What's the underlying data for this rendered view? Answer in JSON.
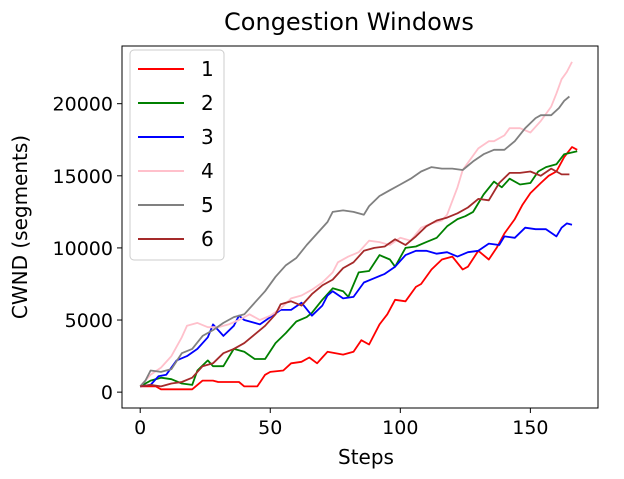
{
  "chart_data": {
    "type": "line",
    "title": "Congestion Windows",
    "xlabel": "Steps",
    "ylabel": "CWND (segments)",
    "xlim": [
      -7,
      176
    ],
    "ylim": [
      -1100,
      24000
    ],
    "xticks": [
      0,
      50,
      100,
      150
    ],
    "yticks": [
      0,
      5000,
      10000,
      15000,
      20000
    ],
    "grid": false,
    "legend_position": "upper-left",
    "series": [
      {
        "name": "1",
        "color": "#ff0000",
        "points": [
          [
            0,
            400
          ],
          [
            6,
            400
          ],
          [
            8,
            200
          ],
          [
            20,
            200
          ],
          [
            22,
            500
          ],
          [
            24,
            800
          ],
          [
            28,
            800
          ],
          [
            30,
            700
          ],
          [
            38,
            700
          ],
          [
            40,
            400
          ],
          [
            45,
            400
          ],
          [
            48,
            1200
          ],
          [
            50,
            1400
          ],
          [
            55,
            1500
          ],
          [
            58,
            2000
          ],
          [
            62,
            2100
          ],
          [
            65,
            2400
          ],
          [
            68,
            2000
          ],
          [
            70,
            2400
          ],
          [
            72,
            2800
          ],
          [
            78,
            2600
          ],
          [
            82,
            2800
          ],
          [
            85,
            3600
          ],
          [
            88,
            3300
          ],
          [
            92,
            4700
          ],
          [
            95,
            5400
          ],
          [
            98,
            6400
          ],
          [
            102,
            6300
          ],
          [
            106,
            7300
          ],
          [
            108,
            7500
          ],
          [
            112,
            8500
          ],
          [
            116,
            9200
          ],
          [
            120,
            9400
          ],
          [
            124,
            8500
          ],
          [
            126,
            8700
          ],
          [
            130,
            9800
          ],
          [
            134,
            9200
          ],
          [
            137,
            10000
          ],
          [
            140,
            11000
          ],
          [
            144,
            12000
          ],
          [
            147,
            13000
          ],
          [
            150,
            13800
          ],
          [
            154,
            14500
          ],
          [
            157,
            15000
          ],
          [
            160,
            15300
          ],
          [
            163,
            16300
          ],
          [
            166,
            17000
          ],
          [
            168,
            16800
          ]
        ]
      },
      {
        "name": "2",
        "color": "#008000",
        "points": [
          [
            0,
            400
          ],
          [
            4,
            800
          ],
          [
            8,
            1000
          ],
          [
            12,
            900
          ],
          [
            16,
            600
          ],
          [
            20,
            500
          ],
          [
            22,
            1500
          ],
          [
            26,
            2200
          ],
          [
            28,
            1800
          ],
          [
            32,
            1800
          ],
          [
            36,
            3000
          ],
          [
            40,
            2800
          ],
          [
            44,
            2300
          ],
          [
            48,
            2300
          ],
          [
            52,
            3400
          ],
          [
            56,
            4100
          ],
          [
            60,
            4900
          ],
          [
            64,
            5200
          ],
          [
            66,
            5500
          ],
          [
            70,
            6400
          ],
          [
            74,
            7200
          ],
          [
            78,
            7000
          ],
          [
            80,
            6600
          ],
          [
            84,
            8300
          ],
          [
            88,
            8400
          ],
          [
            92,
            9500
          ],
          [
            96,
            9200
          ],
          [
            98,
            8700
          ],
          [
            102,
            10000
          ],
          [
            106,
            10100
          ],
          [
            110,
            10400
          ],
          [
            114,
            10700
          ],
          [
            118,
            11500
          ],
          [
            122,
            12000
          ],
          [
            125,
            12200
          ],
          [
            128,
            12500
          ],
          [
            132,
            13700
          ],
          [
            136,
            14600
          ],
          [
            139,
            14200
          ],
          [
            142,
            14800
          ],
          [
            146,
            14400
          ],
          [
            150,
            14500
          ],
          [
            153,
            15300
          ],
          [
            156,
            15600
          ],
          [
            160,
            15800
          ],
          [
            163,
            16500
          ],
          [
            168,
            16700
          ]
        ]
      },
      {
        "name": "3",
        "color": "#0000ff",
        "points": [
          [
            0,
            400
          ],
          [
            4,
            500
          ],
          [
            7,
            1100
          ],
          [
            10,
            1200
          ],
          [
            14,
            2200
          ],
          [
            18,
            2500
          ],
          [
            22,
            3000
          ],
          [
            26,
            3800
          ],
          [
            28,
            4700
          ],
          [
            32,
            3900
          ],
          [
            36,
            4600
          ],
          [
            38,
            5300
          ],
          [
            40,
            5000
          ],
          [
            44,
            4800
          ],
          [
            46,
            4700
          ],
          [
            50,
            5200
          ],
          [
            54,
            5700
          ],
          [
            58,
            5700
          ],
          [
            62,
            6200
          ],
          [
            66,
            5300
          ],
          [
            70,
            6000
          ],
          [
            72,
            6700
          ],
          [
            74,
            7000
          ],
          [
            78,
            6500
          ],
          [
            82,
            6600
          ],
          [
            86,
            7600
          ],
          [
            90,
            7900
          ],
          [
            94,
            8200
          ],
          [
            98,
            8700
          ],
          [
            102,
            9500
          ],
          [
            106,
            9800
          ],
          [
            110,
            9800
          ],
          [
            114,
            9600
          ],
          [
            118,
            9700
          ],
          [
            122,
            9400
          ],
          [
            126,
            9700
          ],
          [
            130,
            9800
          ],
          [
            134,
            10300
          ],
          [
            138,
            10200
          ],
          [
            140,
            10800
          ],
          [
            144,
            10700
          ],
          [
            148,
            11400
          ],
          [
            152,
            11300
          ],
          [
            156,
            11300
          ],
          [
            160,
            10800
          ],
          [
            162,
            11400
          ],
          [
            164,
            11700
          ],
          [
            166,
            11600
          ]
        ]
      },
      {
        "name": "4",
        "color": "#ffc0cb",
        "points": [
          [
            0,
            400
          ],
          [
            4,
            1200
          ],
          [
            8,
            1700
          ],
          [
            12,
            2500
          ],
          [
            16,
            3800
          ],
          [
            18,
            4600
          ],
          [
            22,
            4800
          ],
          [
            26,
            4500
          ],
          [
            30,
            4500
          ],
          [
            34,
            4700
          ],
          [
            38,
            5000
          ],
          [
            42,
            5400
          ],
          [
            46,
            5000
          ],
          [
            50,
            5300
          ],
          [
            54,
            5800
          ],
          [
            58,
            6500
          ],
          [
            62,
            6700
          ],
          [
            66,
            7100
          ],
          [
            70,
            7600
          ],
          [
            74,
            8300
          ],
          [
            76,
            9000
          ],
          [
            80,
            9400
          ],
          [
            84,
            9700
          ],
          [
            88,
            10500
          ],
          [
            92,
            10400
          ],
          [
            96,
            10200
          ],
          [
            100,
            10700
          ],
          [
            104,
            10500
          ],
          [
            108,
            11400
          ],
          [
            112,
            11700
          ],
          [
            116,
            11900
          ],
          [
            118,
            12300
          ],
          [
            122,
            14200
          ],
          [
            124,
            15400
          ],
          [
            126,
            15900
          ],
          [
            130,
            16900
          ],
          [
            134,
            17400
          ],
          [
            136,
            17400
          ],
          [
            140,
            17800
          ],
          [
            142,
            18300
          ],
          [
            146,
            18300
          ],
          [
            150,
            18000
          ],
          [
            154,
            18800
          ],
          [
            158,
            19800
          ],
          [
            160,
            20700
          ],
          [
            162,
            21700
          ],
          [
            164,
            22200
          ],
          [
            166,
            22900
          ]
        ]
      },
      {
        "name": "5",
        "color": "#808080",
        "points": [
          [
            0,
            400
          ],
          [
            2,
            800
          ],
          [
            4,
            1500
          ],
          [
            8,
            1400
          ],
          [
            12,
            1600
          ],
          [
            16,
            2700
          ],
          [
            20,
            3000
          ],
          [
            24,
            3900
          ],
          [
            28,
            4300
          ],
          [
            32,
            4800
          ],
          [
            36,
            5200
          ],
          [
            40,
            5400
          ],
          [
            44,
            6200
          ],
          [
            48,
            7000
          ],
          [
            52,
            8000
          ],
          [
            56,
            8800
          ],
          [
            60,
            9300
          ],
          [
            64,
            10200
          ],
          [
            68,
            11000
          ],
          [
            72,
            11800
          ],
          [
            74,
            12500
          ],
          [
            78,
            12600
          ],
          [
            82,
            12500
          ],
          [
            86,
            12300
          ],
          [
            88,
            12900
          ],
          [
            92,
            13600
          ],
          [
            96,
            14000
          ],
          [
            100,
            14400
          ],
          [
            104,
            14800
          ],
          [
            108,
            15300
          ],
          [
            112,
            15600
          ],
          [
            116,
            15500
          ],
          [
            120,
            15500
          ],
          [
            124,
            15400
          ],
          [
            128,
            16000
          ],
          [
            132,
            16500
          ],
          [
            136,
            16800
          ],
          [
            140,
            16800
          ],
          [
            144,
            17400
          ],
          [
            148,
            18300
          ],
          [
            152,
            19000
          ],
          [
            154,
            19200
          ],
          [
            158,
            19200
          ],
          [
            161,
            19700
          ],
          [
            163,
            20200
          ],
          [
            165,
            20500
          ]
        ]
      },
      {
        "name": "6",
        "color": "#a52a2a",
        "points": [
          [
            0,
            400
          ],
          [
            4,
            500
          ],
          [
            8,
            400
          ],
          [
            12,
            600
          ],
          [
            16,
            700
          ],
          [
            20,
            1000
          ],
          [
            24,
            1800
          ],
          [
            28,
            2000
          ],
          [
            32,
            2700
          ],
          [
            36,
            3000
          ],
          [
            40,
            3400
          ],
          [
            44,
            4000
          ],
          [
            48,
            4600
          ],
          [
            52,
            5400
          ],
          [
            54,
            6100
          ],
          [
            58,
            6300
          ],
          [
            62,
            6000
          ],
          [
            66,
            6800
          ],
          [
            70,
            7400
          ],
          [
            74,
            7800
          ],
          [
            78,
            8600
          ],
          [
            82,
            9000
          ],
          [
            86,
            9800
          ],
          [
            90,
            10000
          ],
          [
            94,
            10100
          ],
          [
            98,
            10600
          ],
          [
            102,
            10200
          ],
          [
            106,
            10800
          ],
          [
            110,
            11500
          ],
          [
            114,
            11900
          ],
          [
            118,
            12100
          ],
          [
            122,
            12400
          ],
          [
            126,
            12800
          ],
          [
            130,
            13400
          ],
          [
            134,
            13300
          ],
          [
            138,
            14500
          ],
          [
            142,
            15200
          ],
          [
            146,
            15200
          ],
          [
            150,
            15300
          ],
          [
            154,
            15000
          ],
          [
            158,
            15500
          ],
          [
            160,
            15300
          ],
          [
            162,
            15100
          ],
          [
            165,
            15100
          ]
        ]
      }
    ]
  }
}
